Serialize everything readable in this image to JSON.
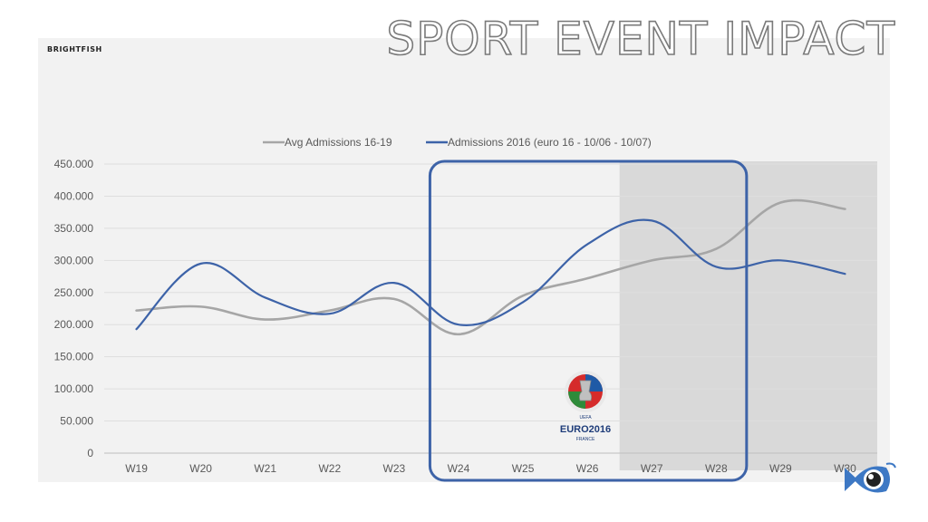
{
  "brand": "BRIGHTFISH",
  "title": "SPORT EVENT IMPACT",
  "chart_data": {
    "type": "line",
    "categories": [
      "W19",
      "W20",
      "W21",
      "W22",
      "W23",
      "W24",
      "W25",
      "W26",
      "W27",
      "W28",
      "W29",
      "W30"
    ],
    "y_ticks": [
      "0",
      "50.000",
      "100.000",
      "150.000",
      "200.000",
      "250.000",
      "300.000",
      "350.000",
      "400.000",
      "450.000"
    ],
    "ylim": [
      0,
      450000
    ],
    "series": [
      {
        "name": "Avg Admissions 16-19",
        "color": "#a6a6a6",
        "values": [
          222000,
          228000,
          208000,
          222000,
          240000,
          185000,
          245000,
          272000,
          300000,
          318000,
          390000,
          380000
        ]
      },
      {
        "name": "Admissions 2016 (euro 16 - 10/06 - 10/07)",
        "color": "#3d63a8",
        "values": [
          193000,
          295000,
          242000,
          217000,
          265000,
          200000,
          235000,
          325000,
          362000,
          290000,
          300000,
          279000
        ]
      }
    ],
    "highlight_weeks": [
      "W24",
      "W28"
    ],
    "shaded_weeks": [
      "W27",
      "W30"
    ],
    "legend_position": "top-center",
    "grid": true
  },
  "badge": {
    "line1": "UEFA",
    "line2": "EURO2016",
    "line3": "FRANCE"
  },
  "colors": {
    "accent_blue": "#3d63a8",
    "avg_gray": "#a6a6a6",
    "shade": "#d9d9d9",
    "panel": "#f2f2f2"
  },
  "icons": {
    "corner": "fish-eye-logo"
  }
}
